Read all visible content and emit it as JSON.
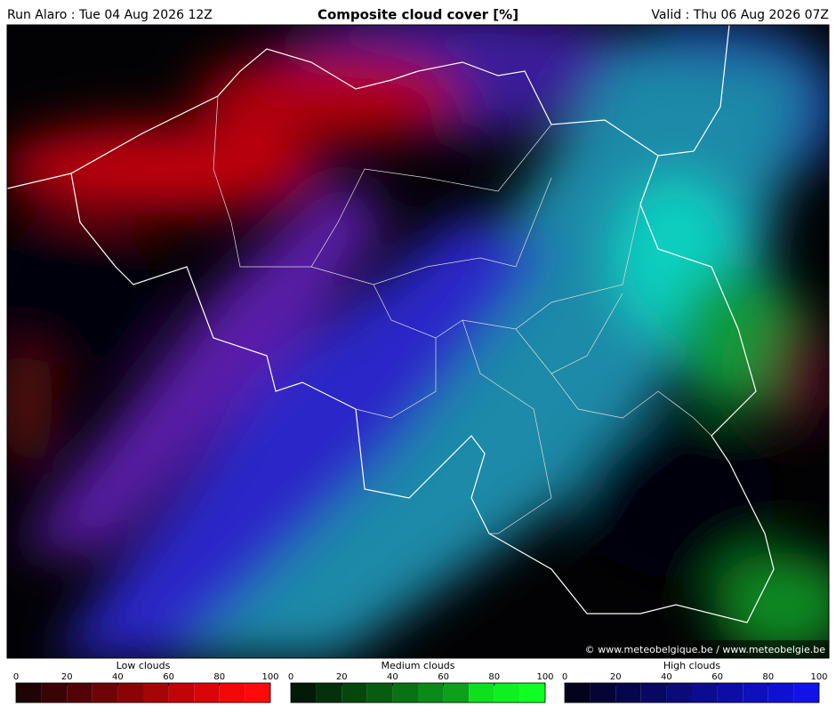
{
  "header": {
    "run": "Run Alaro : Tue 04 Aug 2026 12Z",
    "title": "Composite cloud cover [%]",
    "valid": "Valid : Thu 06 Aug 2026 07Z"
  },
  "copyright": "© www.meteobelgique.be / www.meteobelgie.be",
  "legends": [
    {
      "label": "Low clouds",
      "ticks": [
        0,
        20,
        40,
        60,
        80,
        100
      ],
      "colors": [
        "#1e0406",
        "#3a0306",
        "#530306",
        "#6e0407",
        "#8a0407",
        "#a60508",
        "#c00408",
        "#d80609",
        "#f2070a",
        "#ff0a0a"
      ]
    },
    {
      "label": "Medium clouds",
      "ticks": [
        0,
        20,
        40,
        60,
        80,
        100
      ],
      "colors": [
        "#031a06",
        "#04300a",
        "#05460c",
        "#075c10",
        "#097214",
        "#0a8a18",
        "#0ca01c",
        "#0ee020",
        "#0ff022",
        "#10ff24"
      ]
    },
    {
      "label": "High clouds",
      "ticks": [
        0,
        20,
        40,
        60,
        80,
        100
      ],
      "colors": [
        "#03031e",
        "#050535",
        "#06064c",
        "#080862",
        "#0a0a78",
        "#0c0c90",
        "#0d0da6",
        "#0f0fbc",
        "#1010d2",
        "#1212e8"
      ]
    }
  ]
}
